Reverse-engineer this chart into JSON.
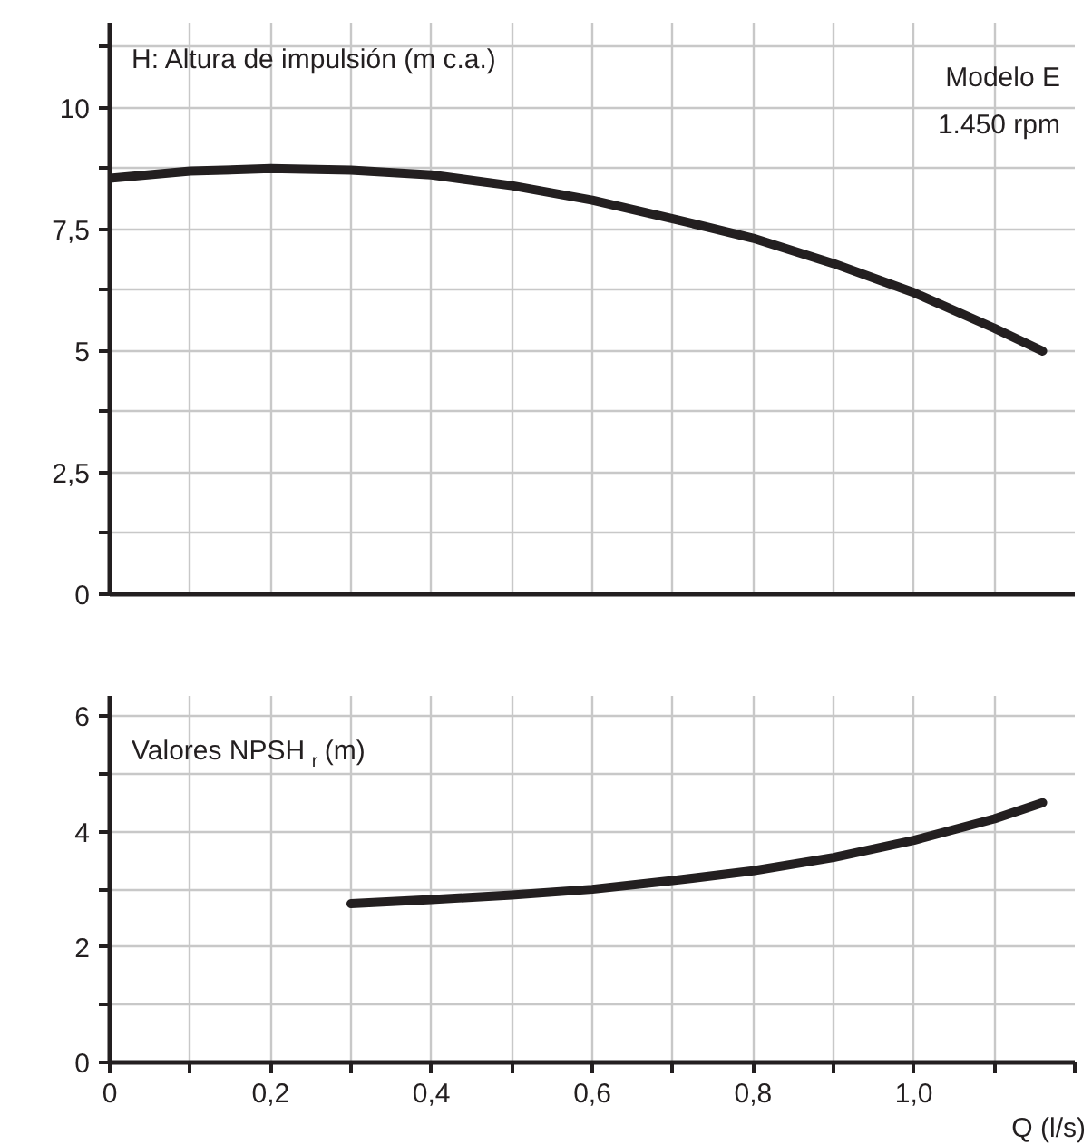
{
  "chart_data": [
    {
      "type": "line",
      "ylabel": "H: Altura de impulsión (m c.a.)",
      "annotations": [
        "Modelo E",
        "1.450 rpm"
      ],
      "x": [
        0,
        0.1,
        0.2,
        0.3,
        0.4,
        0.5,
        0.6,
        0.7,
        0.8,
        0.9,
        1.0,
        1.1,
        1.16
      ],
      "series": [
        {
          "color": "#231f20",
          "values": [
            8.55,
            8.7,
            8.75,
            8.72,
            8.62,
            8.4,
            8.1,
            7.72,
            7.32,
            6.8,
            6.2,
            5.47,
            5.0
          ]
        }
      ],
      "xlim": [
        0,
        1.2
      ],
      "xticks": [
        {
          "value": 0,
          "label": null
        },
        {
          "value": 0.1,
          "label": null
        },
        {
          "value": 0.2,
          "label": null
        },
        {
          "value": 0.3,
          "label": null
        },
        {
          "value": 0.4,
          "label": null
        },
        {
          "value": 0.5,
          "label": null
        },
        {
          "value": 0.6,
          "label": null
        },
        {
          "value": 0.7,
          "label": null
        },
        {
          "value": 0.8,
          "label": null
        },
        {
          "value": 0.9,
          "label": null
        },
        {
          "value": 1.0,
          "label": null
        },
        {
          "value": 1.1,
          "label": null
        }
      ],
      "ylim": [
        0,
        11.75
      ],
      "yticks": [
        0,
        {
          "value": 1.25,
          "label": null
        },
        {
          "value": 2.5,
          "label": "2,5"
        },
        {
          "value": 3.75,
          "label": null
        },
        5,
        {
          "value": 6.25,
          "label": null
        },
        {
          "value": 7.5,
          "label": "7,5"
        },
        {
          "value": 8.75,
          "label": null
        },
        10,
        {
          "value": 11.25,
          "label": null
        }
      ],
      "grid": true,
      "tick_labels": "y"
    },
    {
      "type": "line",
      "ylabel": "Valores NPSH$_{r}$ (m)",
      "xlabel": "Q (l/s)",
      "x": [
        0.3,
        0.4,
        0.5,
        0.6,
        0.7,
        0.8,
        0.9,
        1.0,
        1.1,
        1.16
      ],
      "series": [
        {
          "color": "#231f20",
          "values": [
            2.75,
            2.82,
            2.9,
            3.0,
            3.15,
            3.32,
            3.55,
            3.85,
            4.22,
            4.5
          ]
        }
      ],
      "xlim": [
        0,
        1.2
      ],
      "xticks": [
        0,
        {
          "value": 0.1,
          "label": null
        },
        {
          "value": 0.2,
          "label": "0,2"
        },
        {
          "value": 0.3,
          "label": null
        },
        {
          "value": 0.4,
          "label": "0,4"
        },
        {
          "value": 0.5,
          "label": null
        },
        {
          "value": 0.6,
          "label": "0,6"
        },
        {
          "value": 0.7,
          "label": null
        },
        {
          "value": 0.8,
          "label": "0,8"
        },
        {
          "value": 0.9,
          "label": null
        },
        {
          "value": 1.0,
          "label": "1,0"
        },
        {
          "value": 1.1,
          "label": null
        },
        {
          "value": 1.2,
          "label": null
        }
      ],
      "ylim": [
        0,
        6.35
      ],
      "yticks": [
        0,
        {
          "value": 1,
          "label": null
        },
        2,
        {
          "value": 3,
          "label": null
        },
        4,
        {
          "value": 5,
          "label": null
        },
        6
      ],
      "grid": true
    }
  ]
}
